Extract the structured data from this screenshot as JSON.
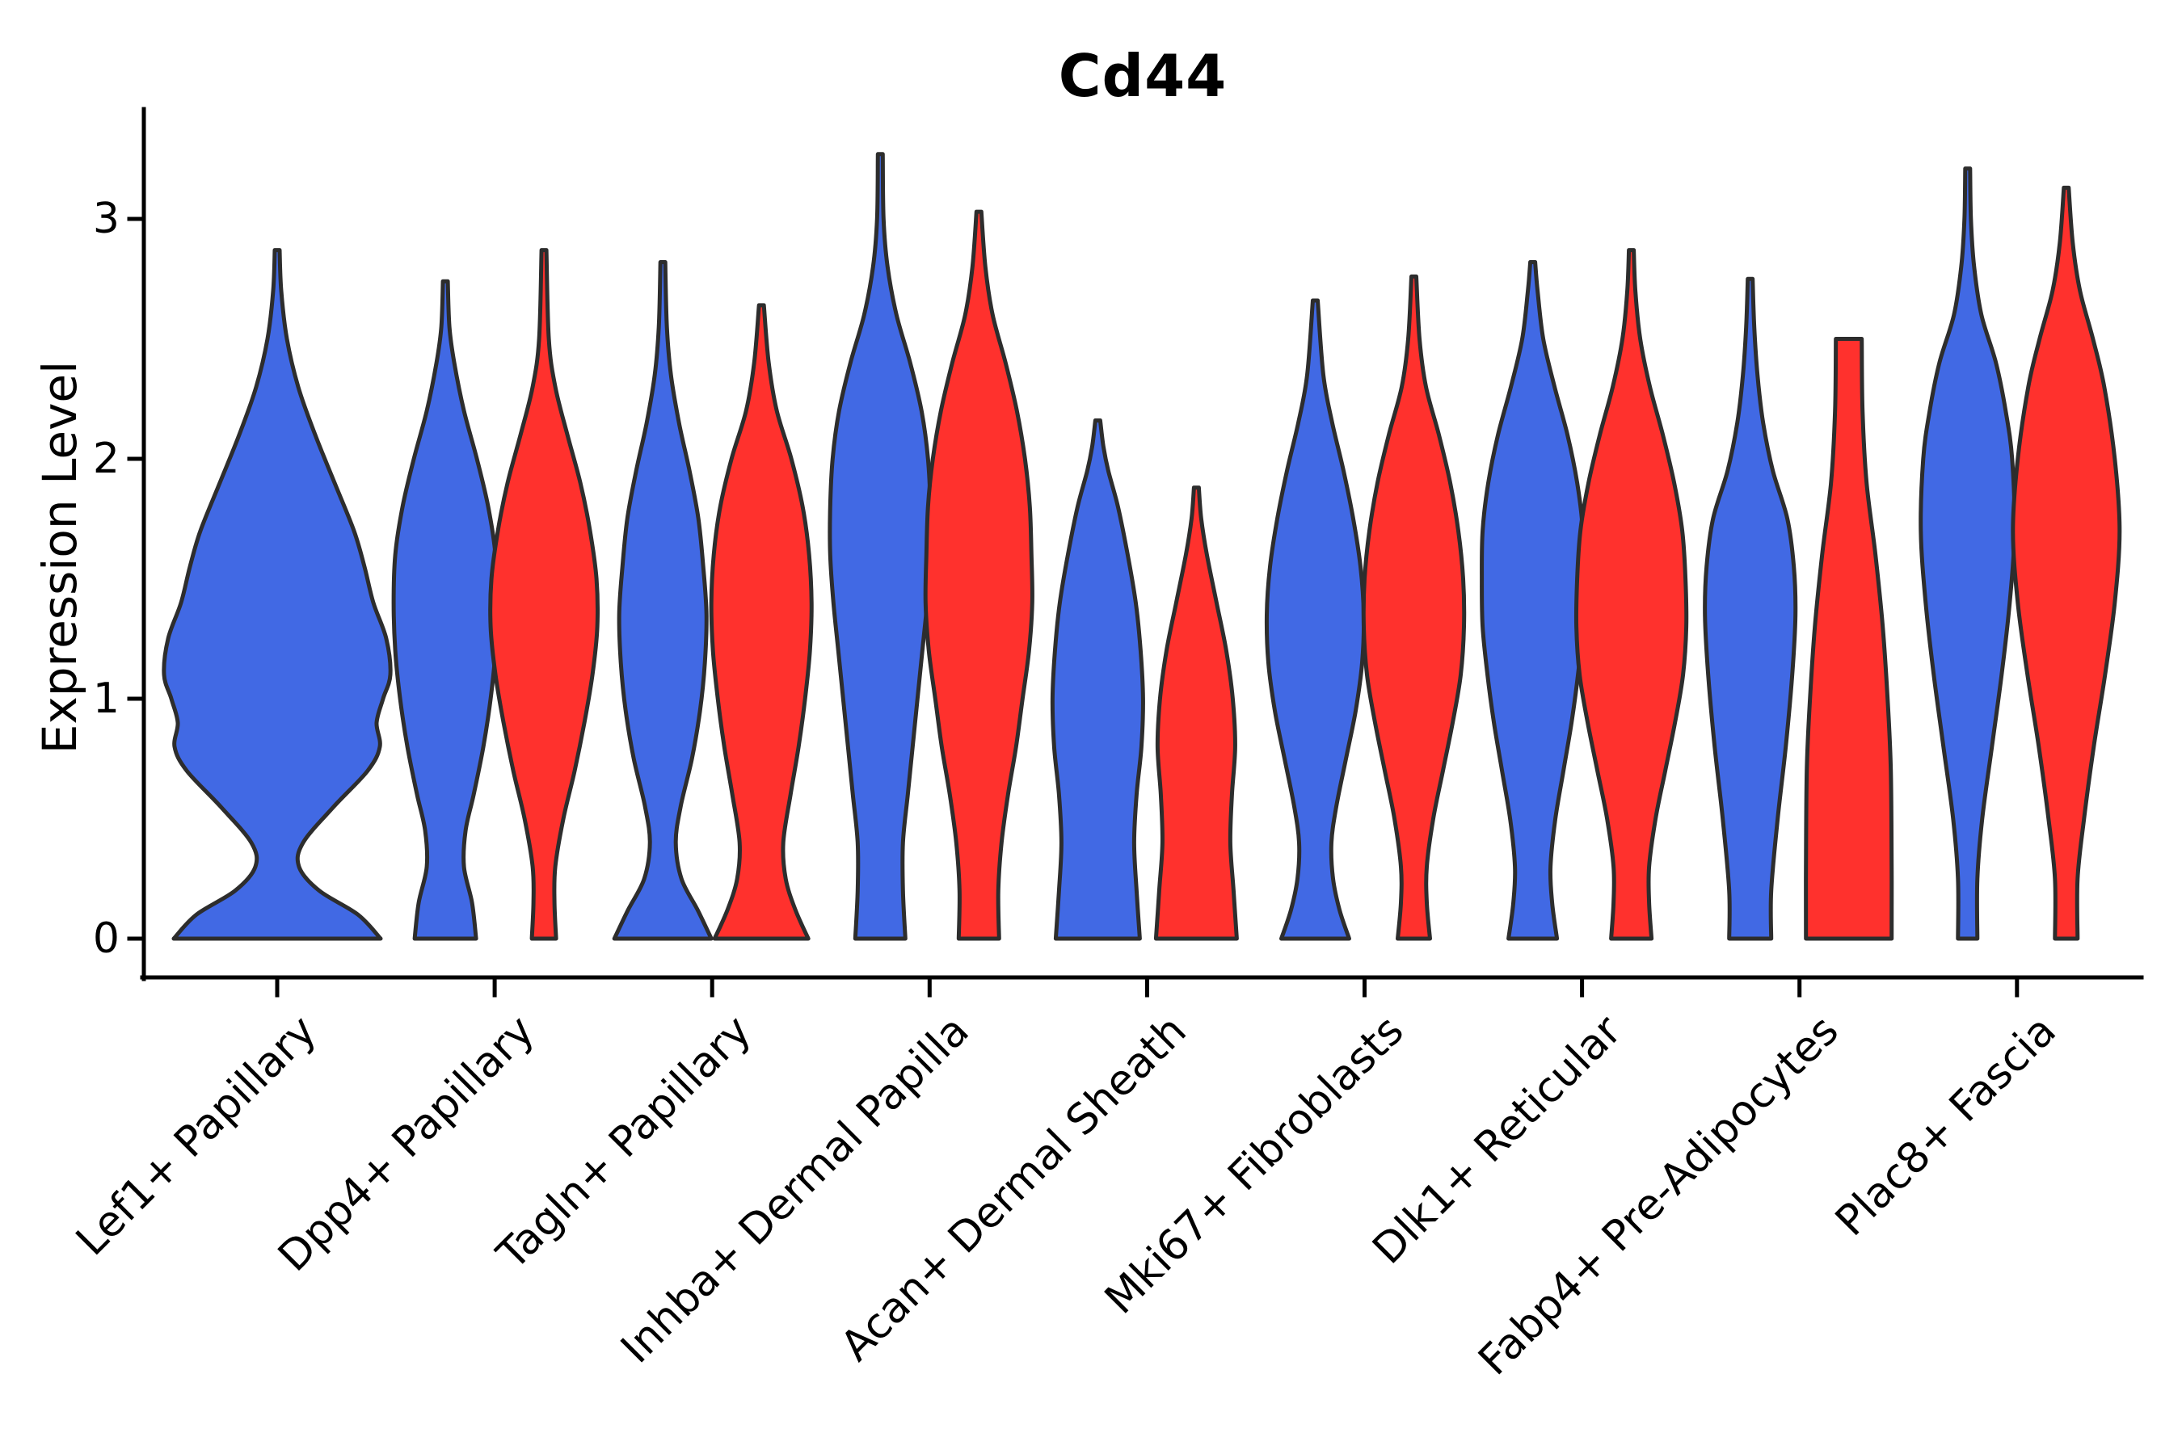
{
  "chart_data": {
    "type": "violin",
    "title": "Cd44",
    "ylabel": "Expression Level",
    "xlabel": "",
    "yticks": [
      0,
      1,
      2,
      3
    ],
    "ylim": [
      -0.16,
      3.46
    ],
    "grid": false,
    "legend": null,
    "x_tick_rotation": 45,
    "outline_color": "#2d2d2d",
    "axis_color": "#000000",
    "group_colors": {
      "blue": "#4169e4",
      "red": "#ff312d"
    },
    "categories": [
      "Lef1+ Papillary",
      "Dpp4+ Papillary",
      "Tagln+ Papillary",
      "Inhba+ Dermal Papilla",
      "Acan+ Dermal Sheath",
      "Mki67+ Fibroblasts",
      "Dlk1+ Reticular",
      "Fabp4+ Pre-Adipocytes",
      "Plac8+ Fascia"
    ],
    "violins": [
      {
        "cat": 0,
        "group": "blue",
        "align": "center",
        "peak": 2.87,
        "profile": [
          [
            0,
            128
          ],
          [
            0.1,
            100
          ],
          [
            0.2,
            52
          ],
          [
            0.3,
            27
          ],
          [
            0.4,
            32
          ],
          [
            0.55,
            70
          ],
          [
            0.7,
            112
          ],
          [
            0.8,
            127
          ],
          [
            0.9,
            123
          ],
          [
            1.0,
            131
          ],
          [
            1.1,
            140
          ],
          [
            1.25,
            135
          ],
          [
            1.4,
            119
          ],
          [
            1.55,
            108
          ],
          [
            1.7,
            95
          ],
          [
            1.9,
            71
          ],
          [
            2.1,
            47
          ],
          [
            2.3,
            26
          ],
          [
            2.5,
            12
          ],
          [
            2.7,
            5
          ],
          [
            2.87,
            3
          ]
        ]
      },
      {
        "cat": 1,
        "group": "blue",
        "align": "left",
        "peak": 2.74,
        "profile": [
          [
            0,
            38
          ],
          [
            0.15,
            33
          ],
          [
            0.3,
            23
          ],
          [
            0.45,
            25
          ],
          [
            0.6,
            35
          ],
          [
            0.8,
            47
          ],
          [
            1.0,
            56
          ],
          [
            1.2,
            62
          ],
          [
            1.4,
            64
          ],
          [
            1.6,
            62
          ],
          [
            1.8,
            53
          ],
          [
            2.0,
            39
          ],
          [
            2.2,
            23
          ],
          [
            2.4,
            11
          ],
          [
            2.55,
            5
          ],
          [
            2.74,
            3
          ]
        ]
      },
      {
        "cat": 1,
        "group": "red",
        "align": "right",
        "peak": 2.87,
        "profile": [
          [
            0,
            15
          ],
          [
            0.15,
            13
          ],
          [
            0.3,
            14
          ],
          [
            0.5,
            24
          ],
          [
            0.7,
            38
          ],
          [
            0.9,
            50
          ],
          [
            1.1,
            60
          ],
          [
            1.3,
            66
          ],
          [
            1.5,
            65
          ],
          [
            1.7,
            57
          ],
          [
            1.9,
            45
          ],
          [
            2.1,
            29
          ],
          [
            2.3,
            14
          ],
          [
            2.5,
            6
          ],
          [
            2.87,
            3
          ]
        ]
      },
      {
        "cat": 2,
        "group": "blue",
        "align": "left",
        "peak": 2.82,
        "profile": [
          [
            0,
            60
          ],
          [
            0.12,
            43
          ],
          [
            0.25,
            23
          ],
          [
            0.4,
            16
          ],
          [
            0.55,
            22
          ],
          [
            0.75,
            36
          ],
          [
            0.95,
            46
          ],
          [
            1.15,
            52
          ],
          [
            1.35,
            54
          ],
          [
            1.55,
            50
          ],
          [
            1.75,
            44
          ],
          [
            1.95,
            33
          ],
          [
            2.15,
            20
          ],
          [
            2.35,
            10
          ],
          [
            2.55,
            5
          ],
          [
            2.82,
            3
          ]
        ]
      },
      {
        "cat": 2,
        "group": "red",
        "align": "right",
        "peak": 2.64,
        "profile": [
          [
            0,
            58
          ],
          [
            0.12,
            42
          ],
          [
            0.25,
            30
          ],
          [
            0.4,
            27
          ],
          [
            0.6,
            36
          ],
          [
            0.8,
            46
          ],
          [
            1.0,
            54
          ],
          [
            1.2,
            60
          ],
          [
            1.4,
            62
          ],
          [
            1.6,
            59
          ],
          [
            1.8,
            51
          ],
          [
            2.0,
            37
          ],
          [
            2.2,
            19
          ],
          [
            2.4,
            9
          ],
          [
            2.64,
            3
          ]
        ]
      },
      {
        "cat": 3,
        "group": "blue",
        "align": "left",
        "peak": 3.27,
        "profile": [
          [
            0,
            31
          ],
          [
            0.2,
            28
          ],
          [
            0.4,
            28
          ],
          [
            0.6,
            34
          ],
          [
            0.8,
            40
          ],
          [
            1.0,
            46
          ],
          [
            1.2,
            52
          ],
          [
            1.4,
            58
          ],
          [
            1.6,
            62
          ],
          [
            1.8,
            62
          ],
          [
            2.0,
            59
          ],
          [
            2.2,
            51
          ],
          [
            2.4,
            37
          ],
          [
            2.6,
            20
          ],
          [
            2.8,
            9
          ],
          [
            3.0,
            4
          ],
          [
            3.27,
            3
          ]
        ]
      },
      {
        "cat": 3,
        "group": "red",
        "align": "right",
        "peak": 3.03,
        "profile": [
          [
            0,
            25
          ],
          [
            0.2,
            24
          ],
          [
            0.4,
            28
          ],
          [
            0.6,
            36
          ],
          [
            0.8,
            46
          ],
          [
            1.0,
            54
          ],
          [
            1.2,
            62
          ],
          [
            1.4,
            66
          ],
          [
            1.6,
            65
          ],
          [
            1.8,
            63
          ],
          [
            2.0,
            57
          ],
          [
            2.2,
            47
          ],
          [
            2.4,
            33
          ],
          [
            2.6,
            17
          ],
          [
            2.8,
            8
          ],
          [
            3.03,
            3
          ]
        ]
      },
      {
        "cat": 4,
        "group": "blue",
        "align": "left",
        "peak": 2.16,
        "profile": [
          [
            0,
            52
          ],
          [
            0.2,
            48
          ],
          [
            0.4,
            45
          ],
          [
            0.6,
            48
          ],
          [
            0.8,
            54
          ],
          [
            1.0,
            56
          ],
          [
            1.2,
            53
          ],
          [
            1.4,
            47
          ],
          [
            1.6,
            37
          ],
          [
            1.8,
            25
          ],
          [
            1.95,
            13
          ],
          [
            2.05,
            7
          ],
          [
            2.16,
            3
          ]
        ]
      },
      {
        "cat": 4,
        "group": "red",
        "align": "right",
        "peak": 1.88,
        "profile": [
          [
            0,
            50
          ],
          [
            0.2,
            46
          ],
          [
            0.4,
            42
          ],
          [
            0.6,
            44
          ],
          [
            0.8,
            48
          ],
          [
            1.0,
            45
          ],
          [
            1.2,
            37
          ],
          [
            1.4,
            25
          ],
          [
            1.6,
            13
          ],
          [
            1.75,
            6
          ],
          [
            1.88,
            3
          ]
        ]
      },
      {
        "cat": 5,
        "group": "blue",
        "align": "left",
        "peak": 2.66,
        "profile": [
          [
            0,
            42
          ],
          [
            0.12,
            30
          ],
          [
            0.25,
            22
          ],
          [
            0.4,
            20
          ],
          [
            0.55,
            26
          ],
          [
            0.75,
            38
          ],
          [
            0.95,
            50
          ],
          [
            1.15,
            58
          ],
          [
            1.35,
            60
          ],
          [
            1.55,
            56
          ],
          [
            1.75,
            47
          ],
          [
            1.95,
            35
          ],
          [
            2.15,
            21
          ],
          [
            2.35,
            10
          ],
          [
            2.66,
            3
          ]
        ]
      },
      {
        "cat": 5,
        "group": "red",
        "align": "right",
        "peak": 2.76,
        "profile": [
          [
            0,
            20
          ],
          [
            0.15,
            16
          ],
          [
            0.3,
            16
          ],
          [
            0.5,
            24
          ],
          [
            0.7,
            36
          ],
          [
            0.9,
            48
          ],
          [
            1.1,
            58
          ],
          [
            1.3,
            62
          ],
          [
            1.5,
            61
          ],
          [
            1.7,
            55
          ],
          [
            1.9,
            45
          ],
          [
            2.1,
            31
          ],
          [
            2.3,
            15
          ],
          [
            2.5,
            7
          ],
          [
            2.76,
            3
          ]
        ]
      },
      {
        "cat": 6,
        "group": "blue",
        "align": "left",
        "peak": 2.82,
        "profile": [
          [
            0,
            30
          ],
          [
            0.15,
            24
          ],
          [
            0.3,
            22
          ],
          [
            0.5,
            28
          ],
          [
            0.7,
            38
          ],
          [
            0.9,
            48
          ],
          [
            1.1,
            56
          ],
          [
            1.3,
            62
          ],
          [
            1.5,
            63
          ],
          [
            1.7,
            62
          ],
          [
            1.9,
            55
          ],
          [
            2.1,
            43
          ],
          [
            2.3,
            27
          ],
          [
            2.5,
            13
          ],
          [
            2.7,
            6
          ],
          [
            2.82,
            3
          ]
        ]
      },
      {
        "cat": 6,
        "group": "red",
        "align": "right",
        "peak": 2.87,
        "profile": [
          [
            0,
            25
          ],
          [
            0.15,
            22
          ],
          [
            0.3,
            22
          ],
          [
            0.5,
            30
          ],
          [
            0.7,
            42
          ],
          [
            0.9,
            54
          ],
          [
            1.1,
            64
          ],
          [
            1.3,
            68
          ],
          [
            1.5,
            67
          ],
          [
            1.7,
            63
          ],
          [
            1.9,
            53
          ],
          [
            2.1,
            39
          ],
          [
            2.3,
            23
          ],
          [
            2.5,
            11
          ],
          [
            2.7,
            5
          ],
          [
            2.87,
            3
          ]
        ]
      },
      {
        "cat": 7,
        "group": "blue",
        "align": "left",
        "peak": 2.75,
        "profile": [
          [
            0,
            26
          ],
          [
            0.2,
            26
          ],
          [
            0.5,
            34
          ],
          [
            0.8,
            44
          ],
          [
            1.1,
            52
          ],
          [
            1.35,
            56
          ],
          [
            1.55,
            54
          ],
          [
            1.75,
            46
          ],
          [
            1.95,
            28
          ],
          [
            2.15,
            16
          ],
          [
            2.35,
            9
          ],
          [
            2.55,
            5
          ],
          [
            2.75,
            3
          ]
        ]
      },
      {
        "cat": 7,
        "group": "red",
        "align": "right",
        "peak": 2.5,
        "flat_top": true,
        "profile": [
          [
            0,
            53
          ],
          [
            0.3,
            53
          ],
          [
            0.7,
            52
          ],
          [
            1.0,
            48
          ],
          [
            1.3,
            42
          ],
          [
            1.6,
            33
          ],
          [
            1.9,
            22
          ],
          [
            2.2,
            17
          ],
          [
            2.5,
            16
          ]
        ]
      },
      {
        "cat": 8,
        "group": "blue",
        "align": "left",
        "peak": 3.21,
        "profile": [
          [
            0,
            12
          ],
          [
            0.25,
            12
          ],
          [
            0.5,
            18
          ],
          [
            0.8,
            30
          ],
          [
            1.1,
            42
          ],
          [
            1.4,
            52
          ],
          [
            1.7,
            58
          ],
          [
            2.0,
            55
          ],
          [
            2.2,
            47
          ],
          [
            2.4,
            35
          ],
          [
            2.6,
            17
          ],
          [
            2.8,
            8
          ],
          [
            3.0,
            4
          ],
          [
            3.21,
            3
          ]
        ]
      },
      {
        "cat": 8,
        "group": "red",
        "align": "right",
        "peak": 3.13,
        "profile": [
          [
            0,
            14
          ],
          [
            0.25,
            14
          ],
          [
            0.5,
            22
          ],
          [
            0.8,
            34
          ],
          [
            1.1,
            48
          ],
          [
            1.4,
            60
          ],
          [
            1.7,
            66
          ],
          [
            2.0,
            60
          ],
          [
            2.3,
            47
          ],
          [
            2.5,
            33
          ],
          [
            2.7,
            17
          ],
          [
            2.9,
            8
          ],
          [
            3.13,
            3
          ]
        ]
      }
    ]
  }
}
